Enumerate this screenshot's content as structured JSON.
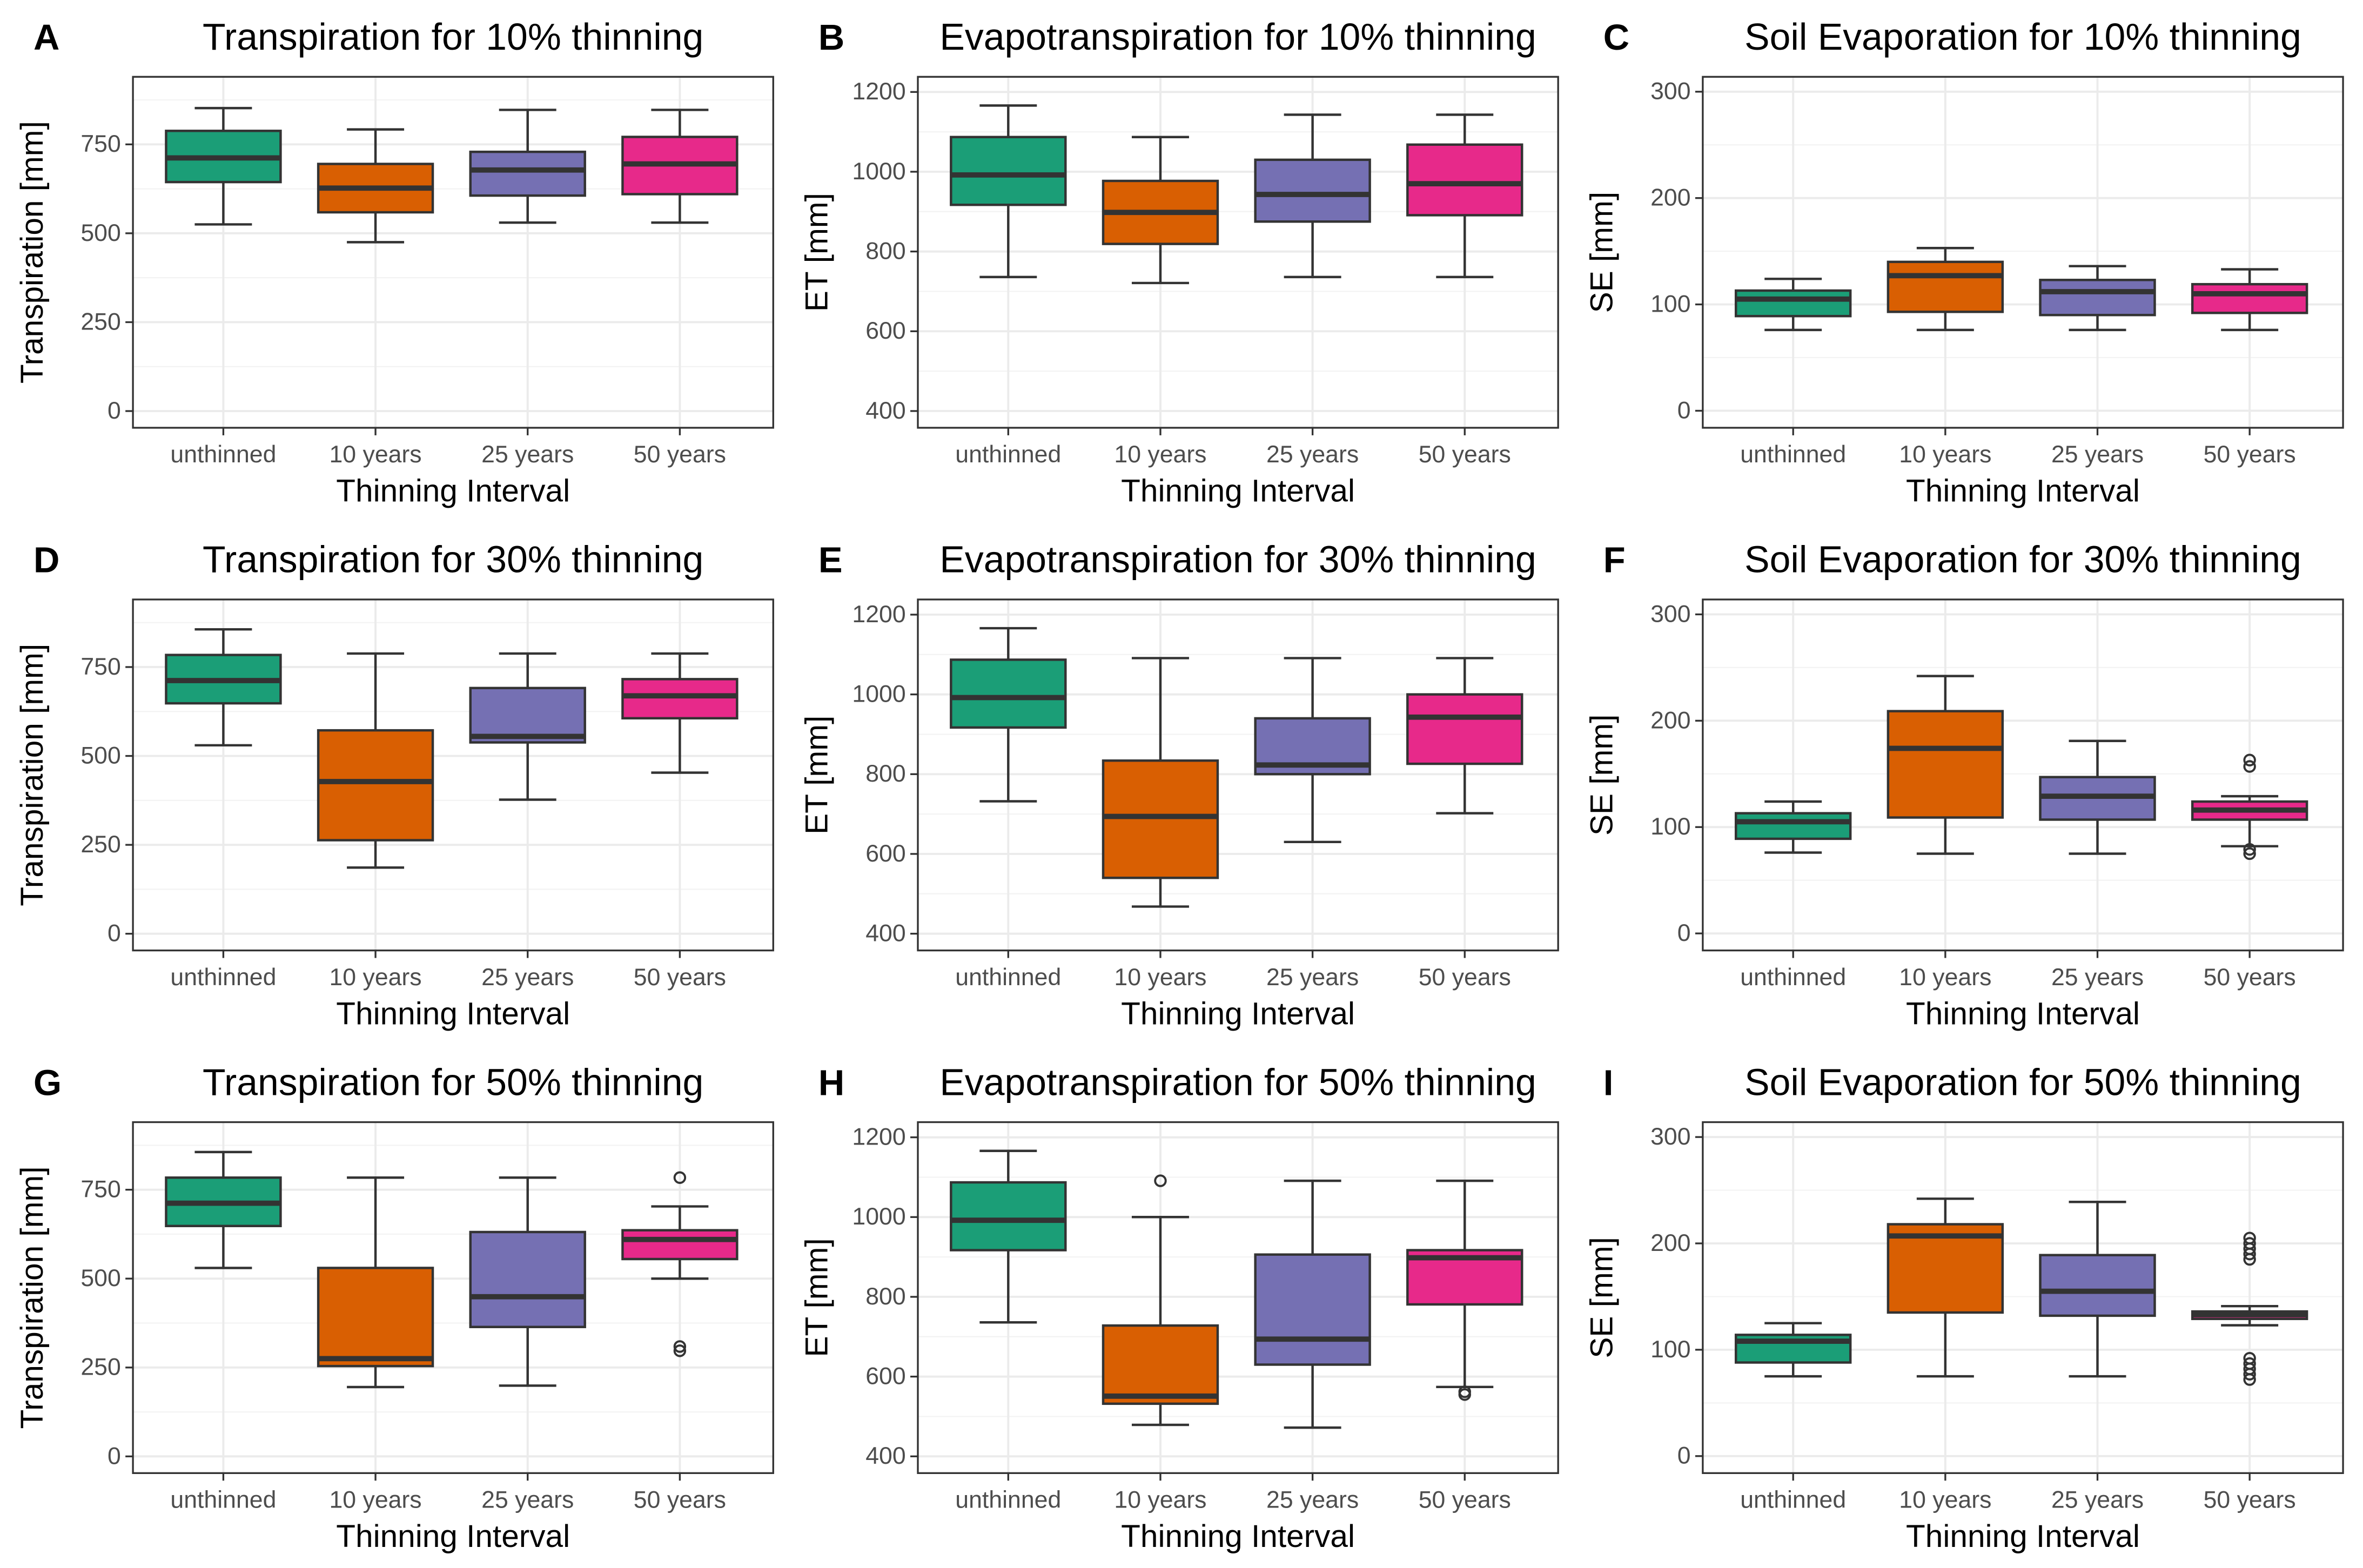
{
  "colors": {
    "unthinned": "#1b9e77",
    "10 years": "#d95f02",
    "25 years": "#7570b3",
    "50 years": "#e7298a",
    "outline": "#333333"
  },
  "chart_data": [
    {
      "type": "box",
      "label": "A",
      "title": "Transpiration for 10% thinning",
      "xlabel": "Thinning Interval",
      "ylabel": "Transpiration [mm]",
      "categories": [
        "unthinned",
        "10 years",
        "25 years",
        "50 years"
      ],
      "yticks": [
        0,
        250,
        500,
        750
      ],
      "ylim": [
        -47,
        940
      ],
      "boxes": [
        {
          "min": 525,
          "q1": 644,
          "median": 712,
          "q3": 788,
          "max": 852,
          "outliers": []
        },
        {
          "min": 475,
          "q1": 559,
          "median": 627,
          "q3": 695,
          "max": 792,
          "outliers": []
        },
        {
          "min": 530,
          "q1": 606,
          "median": 678,
          "q3": 729,
          "max": 847,
          "outliers": []
        },
        {
          "min": 530,
          "q1": 610,
          "median": 695,
          "q3": 771,
          "max": 847,
          "outliers": []
        }
      ]
    },
    {
      "type": "box",
      "label": "B",
      "title": "Evapotranspiration for 10% thinning",
      "xlabel": "Thinning Interval",
      "ylabel": "ET [mm]",
      "categories": [
        "unthinned",
        "10 years",
        "25 years",
        "50 years"
      ],
      "yticks": [
        400,
        600,
        800,
        1000,
        1200
      ],
      "ylim": [
        358,
        1238
      ],
      "boxes": [
        {
          "min": 736,
          "q1": 917,
          "median": 992,
          "q3": 1087,
          "max": 1166,
          "outliers": []
        },
        {
          "min": 721,
          "q1": 819,
          "median": 898,
          "q3": 977,
          "max": 1087,
          "outliers": []
        },
        {
          "min": 736,
          "q1": 875,
          "median": 943,
          "q3": 1030,
          "max": 1143,
          "outliers": []
        },
        {
          "min": 736,
          "q1": 891,
          "median": 970,
          "q3": 1068,
          "max": 1143,
          "outliers": []
        }
      ]
    },
    {
      "type": "box",
      "label": "C",
      "title": "Soil Evaporation for 10% thinning",
      "xlabel": "Thinning Interval",
      "ylabel": "SE [mm]",
      "categories": [
        "unthinned",
        "10 years",
        "25 years",
        "50 years"
      ],
      "yticks": [
        0,
        100,
        200,
        300
      ],
      "ylim": [
        -16,
        314
      ],
      "boxes": [
        {
          "min": 76,
          "q1": 89,
          "median": 105,
          "q3": 113,
          "max": 124,
          "outliers": []
        },
        {
          "min": 76,
          "q1": 93,
          "median": 127,
          "q3": 140,
          "max": 153,
          "outliers": []
        },
        {
          "min": 76,
          "q1": 90,
          "median": 112,
          "q3": 123,
          "max": 136,
          "outliers": []
        },
        {
          "min": 76,
          "q1": 92,
          "median": 110,
          "q3": 119,
          "max": 133,
          "outliers": []
        }
      ]
    },
    {
      "type": "box",
      "label": "D",
      "title": "Transpiration for 30% thinning",
      "xlabel": "Thinning Interval",
      "ylabel": "Transpiration [mm]",
      "categories": [
        "unthinned",
        "10 years",
        "25 years",
        "50 years"
      ],
      "yticks": [
        0,
        250,
        500,
        750
      ],
      "ylim": [
        -47,
        940
      ],
      "boxes": [
        {
          "min": 530,
          "q1": 648,
          "median": 712,
          "q3": 784,
          "max": 856,
          "outliers": []
        },
        {
          "min": 186,
          "q1": 263,
          "median": 428,
          "q3": 572,
          "max": 788,
          "outliers": []
        },
        {
          "min": 377,
          "q1": 538,
          "median": 555,
          "q3": 691,
          "max": 788,
          "outliers": []
        },
        {
          "min": 453,
          "q1": 606,
          "median": 669,
          "q3": 716,
          "max": 788,
          "outliers": []
        }
      ]
    },
    {
      "type": "box",
      "label": "E",
      "title": "Evapotranspiration for 30% thinning",
      "xlabel": "Thinning Interval",
      "ylabel": "ET [mm]",
      "categories": [
        "unthinned",
        "10 years",
        "25 years",
        "50 years"
      ],
      "yticks": [
        400,
        600,
        800,
        1000,
        1200
      ],
      "ylim": [
        358,
        1238
      ],
      "boxes": [
        {
          "min": 732,
          "q1": 917,
          "median": 992,
          "q3": 1087,
          "max": 1166,
          "outliers": []
        },
        {
          "min": 468,
          "q1": 540,
          "median": 694,
          "q3": 834,
          "max": 1091,
          "outliers": []
        },
        {
          "min": 630,
          "q1": 800,
          "median": 823,
          "q3": 940,
          "max": 1091,
          "outliers": []
        },
        {
          "min": 702,
          "q1": 826,
          "median": 943,
          "q3": 1000,
          "max": 1091,
          "outliers": []
        }
      ]
    },
    {
      "type": "box",
      "label": "F",
      "title": "Soil Evaporation for 30% thinning",
      "xlabel": "Thinning Interval",
      "ylabel": "SE [mm]",
      "categories": [
        "unthinned",
        "10 years",
        "25 years",
        "50 years"
      ],
      "yticks": [
        0,
        100,
        200,
        300
      ],
      "ylim": [
        -16,
        314
      ],
      "boxes": [
        {
          "min": 76,
          "q1": 89,
          "median": 105,
          "q3": 113,
          "max": 124,
          "outliers": []
        },
        {
          "min": 75,
          "q1": 109,
          "median": 174,
          "q3": 209,
          "max": 242,
          "outliers": []
        },
        {
          "min": 75,
          "q1": 107,
          "median": 129,
          "q3": 147,
          "max": 181,
          "outliers": []
        },
        {
          "min": 82,
          "q1": 107,
          "median": 116,
          "q3": 124,
          "max": 129,
          "outliers": [
            163,
            157,
            79,
            75
          ]
        }
      ]
    },
    {
      "type": "box",
      "label": "G",
      "title": "Transpiration for 50% thinning",
      "xlabel": "Thinning Interval",
      "ylabel": "Transpiration [mm]",
      "categories": [
        "unthinned",
        "10 years",
        "25 years",
        "50 years"
      ],
      "yticks": [
        0,
        250,
        500,
        750
      ],
      "ylim": [
        -47,
        940
      ],
      "boxes": [
        {
          "min": 530,
          "q1": 648,
          "median": 712,
          "q3": 784,
          "max": 856,
          "outliers": []
        },
        {
          "min": 195,
          "q1": 254,
          "median": 275,
          "q3": 530,
          "max": 784,
          "outliers": []
        },
        {
          "min": 199,
          "q1": 364,
          "median": 449,
          "q3": 631,
          "max": 784,
          "outliers": []
        },
        {
          "min": 500,
          "q1": 555,
          "median": 610,
          "q3": 636,
          "max": 703,
          "outliers": [
            784,
            309,
            297
          ]
        }
      ]
    },
    {
      "type": "box",
      "label": "H",
      "title": "Evapotranspiration for 50% thinning",
      "xlabel": "Thinning Interval",
      "ylabel": "ET [mm]",
      "categories": [
        "unthinned",
        "10 years",
        "25 years",
        "50 years"
      ],
      "yticks": [
        400,
        600,
        800,
        1000,
        1200
      ],
      "ylim": [
        358,
        1238
      ],
      "boxes": [
        {
          "min": 736,
          "q1": 917,
          "median": 992,
          "q3": 1087,
          "max": 1166,
          "outliers": []
        },
        {
          "min": 479,
          "q1": 532,
          "median": 551,
          "q3": 728,
          "max": 1000,
          "outliers": [
            1091
          ]
        },
        {
          "min": 472,
          "q1": 630,
          "median": 694,
          "q3": 906,
          "max": 1091,
          "outliers": []
        },
        {
          "min": 574,
          "q1": 781,
          "median": 898,
          "q3": 917,
          "max": 1091,
          "outliers": [
            562,
            555
          ]
        }
      ]
    },
    {
      "type": "box",
      "label": "I",
      "title": "Soil Evaporation for 50% thinning",
      "xlabel": "Thinning Interval",
      "ylabel": "SE [mm]",
      "categories": [
        "unthinned",
        "10 years",
        "25 years",
        "50 years"
      ],
      "yticks": [
        0,
        100,
        200,
        300
      ],
      "ylim": [
        -16,
        314
      ],
      "boxes": [
        {
          "min": 75,
          "q1": 88,
          "median": 108,
          "q3": 114,
          "max": 125,
          "outliers": []
        },
        {
          "min": 75,
          "q1": 135,
          "median": 207,
          "q3": 218,
          "max": 242,
          "outliers": []
        },
        {
          "min": 75,
          "q1": 132,
          "median": 155,
          "q3": 189,
          "max": 239,
          "outliers": []
        },
        {
          "min": 123,
          "q1": 129,
          "median": 133,
          "q3": 136,
          "max": 141,
          "outliers": [
            205,
            200,
            195,
            190,
            185,
            92,
            87,
            82,
            77,
            72
          ]
        }
      ]
    }
  ]
}
